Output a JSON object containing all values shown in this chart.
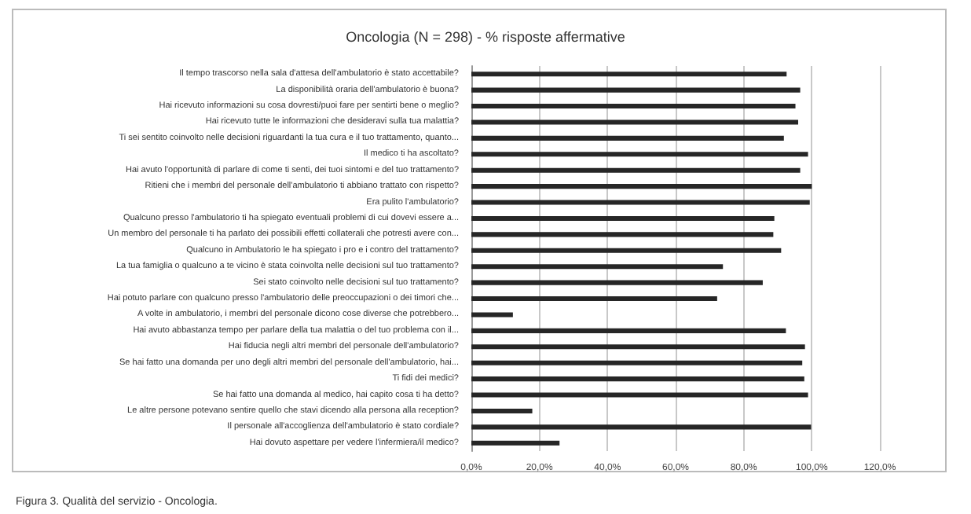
{
  "chart_data": {
    "type": "bar",
    "orientation": "horizontal",
    "title": "Oncologia (N = 298) - % risposte affermative",
    "categories": [
      "Il tempo trascorso nella sala d'attesa dell'ambulatorio è stato accettabile?",
      "La disponibilità oraria dell'ambulatorio è buona?",
      "Hai ricevuto informazioni su cosa dovresti/puoi fare per sentirti bene o meglio?",
      "Hai ricevuto tutte le informazioni che desideravi sulla tua malattia?",
      "Ti sei sentito coinvolto nelle decisioni riguardanti la tua cura e il tuo trattamento, quanto...",
      "Il medico ti ha ascoltato?",
      "Hai avuto l'opportunità di parlare di come ti senti, dei tuoi sintomi e del tuo trattamento?",
      "Ritieni che i membri del personale dell'ambulatorio ti abbiano trattato con rispetto?",
      "Era pulito l'ambulatorio?",
      "Qualcuno presso l'ambulatorio ti ha spiegato eventuali problemi di cui dovevi essere a...",
      "Un membro del personale ti ha parlato dei possibili effetti collaterali che potresti avere con...",
      "Qualcuno in Ambulatorio le ha spiegato i pro e i contro del trattamento?",
      "La tua famiglia o qualcuno a te vicino è stata coinvolta nelle decisioni sul tuo trattamento?",
      "Sei stato coinvolto nelle decisioni sul tuo trattamento?",
      "Hai potuto parlare con qualcuno presso l'ambulatorio delle preoccupazioni o dei timori che...",
      "A volte in ambulatorio, i membri del personale dicono cose diverse che potrebbero...",
      "Hai avuto abbastanza tempo per parlare della tua malattia o del tuo problema con il...",
      "Hai fiducia negli altri membri del personale dell'ambulatorio?",
      "Se hai fatto una domanda per uno degli altri membri del personale dell'ambulatorio, hai...",
      "Ti fidi dei medici?",
      "Se hai fatto una domanda al medico, hai capito cosa ti ha detto?",
      "Le altre persone potevano sentire quello che stavi dicendo alla persona alla reception?",
      "Il personale all'accoglienza dell'ambulatorio è stato cordiale?",
      "Hai dovuto aspettare per vedere l'infermiera/il medico?"
    ],
    "values": [
      92.6,
      96.6,
      95.2,
      96.0,
      91.8,
      98.9,
      96.6,
      100,
      99.4,
      89.0,
      88.7,
      91.0,
      73.9,
      85.6,
      72.2,
      12.2,
      92.4,
      98.0,
      97.2,
      97.8,
      98.9,
      17.9,
      99.8,
      25.9
    ],
    "color": "#262626",
    "xlim": [
      0,
      120
    ],
    "xticks": [
      {
        "value": 0,
        "label": "0,0%"
      },
      {
        "value": 20,
        "label": "20,0%"
      },
      {
        "value": 40,
        "label": "40,0%"
      },
      {
        "value": 60,
        "label": "60,0%"
      },
      {
        "value": 80,
        "label": "80,0%"
      },
      {
        "value": 100,
        "label": "100,0%"
      },
      {
        "value": 120,
        "label": "120,0%"
      }
    ],
    "grid": "x",
    "annotations": [
      "Figura 3. Qualità del servizio - Oncologia."
    ]
  }
}
